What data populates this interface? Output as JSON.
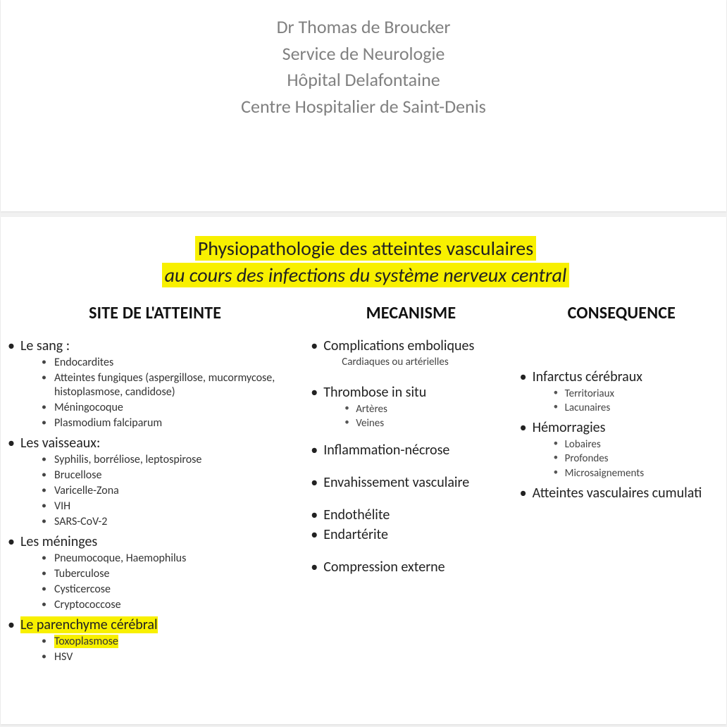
{
  "colors": {
    "pageBg": "#f1f1f1",
    "slideBg": "#ffffff",
    "authorText": "#808080",
    "highlight": "#f8f000",
    "bodyText": "#222222"
  },
  "typography": {
    "authorFontSize": 26,
    "titleFontSize": 28,
    "colHeadFontSize": 24,
    "l1FontSize": 20,
    "l2FontSize": 16,
    "l3FontSize": 15,
    "fontFamily": "Calibri"
  },
  "slide1": {
    "lines": [
      "Dr Thomas de Broucker",
      "Service de Neurologie",
      "Hôpital Delafontaine",
      "Centre Hospitalier de Saint-Denis"
    ]
  },
  "slide2": {
    "title_line1": "Physiopathologie des atteintes vasculaires",
    "title_line2": "au cours des infections du système nerveux central",
    "columns": {
      "site": {
        "head": "SITE DE L'ATTEINTE",
        "i0": "Le sang :",
        "i0s": [
          "Endocardites",
          "Atteintes fungiques (aspergillose, mucormycose, histoplasmose, candidose)",
          "Méningocoque",
          "Plasmodium falciparum"
        ],
        "i1": "Les vaisseaux:",
        "i1s": [
          "Syphilis, borréliose, leptospirose",
          "Brucellose",
          "Varicelle-Zona",
          "VIH",
          "SARS-CoV-2"
        ],
        "i2": "Les méninges",
        "i2s": [
          "Pneumocoque, Haemophilus",
          "Tuberculose",
          "Cysticercose",
          "Cryptococcose"
        ],
        "i3": "Le parenchyme cérébral",
        "i3s": [
          "Toxoplasmose",
          "HSV"
        ]
      },
      "mech": {
        "head": "MECANISME",
        "m0": "Complications emboliques",
        "m0note": "Cardiaques ou artérielles",
        "m1": "Thrombose in situ",
        "m1s": [
          "Artères",
          "Veines"
        ],
        "m2": "Inflammation-nécrose",
        "m3": "Envahissement vasculaire",
        "m4": "Endothélite",
        "m5": "Endartérite",
        "m6": "Compression externe"
      },
      "cons": {
        "head": "CONSEQUENCE",
        "c0": "Infarctus cérébraux",
        "c0s": [
          "Territoriaux",
          "Lacunaires"
        ],
        "c1": "Hémorragies",
        "c1s": [
          "Lobaires",
          "Profondes",
          "Microsaignements"
        ],
        "c2": "Atteintes vasculaires cumulati"
      }
    }
  }
}
